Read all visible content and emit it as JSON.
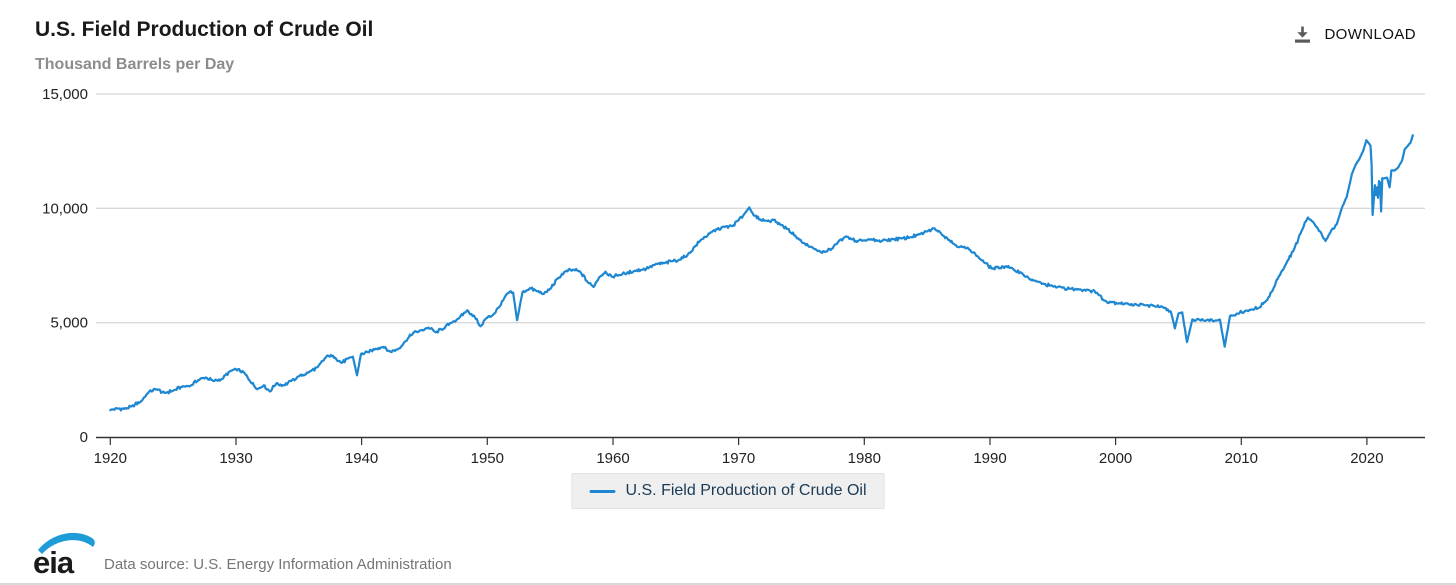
{
  "header": {
    "title": "U.S. Field Production of Crude Oil",
    "subtitle": "Thousand Barrels per Day",
    "download_label": "DOWNLOAD"
  },
  "legend": {
    "label": "U.S. Field Production of Crude Oil"
  },
  "footer": {
    "logo_text": "eia",
    "source": "Data source: U.S. Energy Information Administration"
  },
  "colors": {
    "line": "#1d87d2",
    "grid": "#cccccc",
    "axis": "#333333",
    "tick_text": "#222222",
    "legend_text": "#1a3a54",
    "logo_blue": "#1e9cd7"
  },
  "chart_data": {
    "type": "line",
    "title": "U.S. Field Production of Crude Oil",
    "ylabel": "Thousand Barrels per Day",
    "unit": "thousand barrels per day",
    "grid": "horizontal",
    "legend_position": "bottom-center",
    "xlim": [
      1918.86,
      2024.62
    ],
    "ylim": [
      0,
      15000
    ],
    "x_ticks": [
      1920,
      1930,
      1940,
      1950,
      1960,
      1970,
      1980,
      1990,
      2000,
      2010,
      2020
    ],
    "y_ticks": [
      0,
      5000,
      10000,
      15000
    ],
    "noise_amplitude": 80,
    "series": [
      {
        "name": "U.S. Field Production of Crude Oil",
        "points": [
          [
            1920.0,
            1170
          ],
          [
            1920.5,
            1250
          ],
          [
            1921.1,
            1230
          ],
          [
            1921.7,
            1340
          ],
          [
            1922.4,
            1540
          ],
          [
            1923.1,
            2000
          ],
          [
            1923.7,
            2080
          ],
          [
            1924.3,
            1930
          ],
          [
            1925.0,
            2030
          ],
          [
            1925.7,
            2190
          ],
          [
            1926.4,
            2250
          ],
          [
            1927.0,
            2490
          ],
          [
            1927.6,
            2600
          ],
          [
            1928.2,
            2450
          ],
          [
            1928.9,
            2540
          ],
          [
            1929.5,
            2870
          ],
          [
            1930.0,
            2960
          ],
          [
            1930.6,
            2840
          ],
          [
            1931.1,
            2460
          ],
          [
            1931.7,
            2090
          ],
          [
            1932.2,
            2260
          ],
          [
            1932.7,
            1990
          ],
          [
            1933.2,
            2340
          ],
          [
            1933.8,
            2260
          ],
          [
            1934.4,
            2450
          ],
          [
            1935.0,
            2650
          ],
          [
            1935.8,
            2830
          ],
          [
            1936.5,
            3060
          ],
          [
            1937.3,
            3570
          ],
          [
            1937.9,
            3470
          ],
          [
            1938.4,
            3240
          ],
          [
            1938.9,
            3430
          ],
          [
            1939.3,
            3510
          ],
          [
            1939.63,
            2700
          ],
          [
            1939.95,
            3630
          ],
          [
            1940.5,
            3710
          ],
          [
            1941.1,
            3860
          ],
          [
            1941.7,
            3940
          ],
          [
            1942.3,
            3720
          ],
          [
            1942.9,
            3850
          ],
          [
            1943.5,
            4190
          ],
          [
            1944.1,
            4550
          ],
          [
            1944.7,
            4660
          ],
          [
            1945.3,
            4790
          ],
          [
            1945.9,
            4580
          ],
          [
            1946.5,
            4730
          ],
          [
            1947.1,
            4990
          ],
          [
            1947.8,
            5230
          ],
          [
            1948.4,
            5540
          ],
          [
            1949.0,
            5260
          ],
          [
            1949.45,
            4840
          ],
          [
            1949.9,
            5190
          ],
          [
            1950.4,
            5310
          ],
          [
            1951.0,
            5720
          ],
          [
            1951.6,
            6280
          ],
          [
            1952.05,
            6320
          ],
          [
            1952.37,
            5110
          ],
          [
            1952.8,
            6330
          ],
          [
            1953.4,
            6510
          ],
          [
            1953.9,
            6390
          ],
          [
            1954.5,
            6260
          ],
          [
            1955.0,
            6480
          ],
          [
            1955.6,
            6930
          ],
          [
            1956.2,
            7240
          ],
          [
            1956.9,
            7310
          ],
          [
            1957.4,
            7220
          ],
          [
            1958.0,
            6760
          ],
          [
            1958.45,
            6560
          ],
          [
            1958.9,
            6990
          ],
          [
            1959.4,
            7230
          ],
          [
            1959.9,
            7010
          ],
          [
            1960.5,
            7090
          ],
          [
            1961.1,
            7160
          ],
          [
            1961.7,
            7270
          ],
          [
            1962.3,
            7310
          ],
          [
            1962.9,
            7420
          ],
          [
            1963.5,
            7570
          ],
          [
            1964.1,
            7600
          ],
          [
            1964.7,
            7690
          ],
          [
            1965.3,
            7760
          ],
          [
            1965.9,
            7930
          ],
          [
            1966.5,
            8320
          ],
          [
            1967.1,
            8660
          ],
          [
            1967.7,
            8900
          ],
          [
            1968.3,
            9090
          ],
          [
            1968.9,
            9190
          ],
          [
            1969.5,
            9220
          ],
          [
            1970.0,
            9480
          ],
          [
            1970.45,
            9750
          ],
          [
            1970.85,
            10040
          ],
          [
            1971.2,
            9690
          ],
          [
            1971.7,
            9520
          ],
          [
            1972.2,
            9460
          ],
          [
            1972.8,
            9490
          ],
          [
            1973.3,
            9290
          ],
          [
            1973.9,
            9100
          ],
          [
            1974.5,
            8810
          ],
          [
            1975.1,
            8490
          ],
          [
            1975.7,
            8320
          ],
          [
            1976.3,
            8130
          ],
          [
            1976.9,
            8090
          ],
          [
            1977.4,
            8230
          ],
          [
            1977.9,
            8510
          ],
          [
            1978.4,
            8730
          ],
          [
            1978.9,
            8690
          ],
          [
            1979.4,
            8530
          ],
          [
            1979.9,
            8590
          ],
          [
            1980.5,
            8630
          ],
          [
            1981.1,
            8570
          ],
          [
            1981.7,
            8610
          ],
          [
            1982.3,
            8650
          ],
          [
            1983.0,
            8680
          ],
          [
            1983.7,
            8740
          ],
          [
            1984.4,
            8860
          ],
          [
            1985.0,
            8990
          ],
          [
            1985.6,
            9120
          ],
          [
            1986.1,
            8910
          ],
          [
            1986.6,
            8690
          ],
          [
            1987.2,
            8410
          ],
          [
            1987.8,
            8310
          ],
          [
            1988.4,
            8190
          ],
          [
            1989.0,
            7910
          ],
          [
            1989.6,
            7610
          ],
          [
            1990.2,
            7360
          ],
          [
            1990.8,
            7400
          ],
          [
            1991.3,
            7470
          ],
          [
            1991.9,
            7310
          ],
          [
            1992.5,
            7190
          ],
          [
            1993.1,
            6930
          ],
          [
            1993.7,
            6800
          ],
          [
            1994.3,
            6690
          ],
          [
            1995.0,
            6590
          ],
          [
            1995.7,
            6540
          ],
          [
            1996.4,
            6480
          ],
          [
            1997.1,
            6450
          ],
          [
            1997.8,
            6440
          ],
          [
            1998.5,
            6310
          ],
          [
            1999.1,
            5960
          ],
          [
            1999.7,
            5910
          ],
          [
            2000.3,
            5850
          ],
          [
            2001.0,
            5820
          ],
          [
            2001.7,
            5780
          ],
          [
            2002.4,
            5760
          ],
          [
            2003.1,
            5720
          ],
          [
            2003.8,
            5660
          ],
          [
            2004.4,
            5470
          ],
          [
            2004.72,
            4750
          ],
          [
            2005.0,
            5400
          ],
          [
            2005.3,
            5450
          ],
          [
            2005.68,
            4150
          ],
          [
            2006.1,
            5140
          ],
          [
            2006.7,
            5120
          ],
          [
            2007.3,
            5130
          ],
          [
            2007.9,
            5090
          ],
          [
            2008.3,
            5140
          ],
          [
            2008.68,
            3950
          ],
          [
            2009.1,
            5290
          ],
          [
            2009.7,
            5400
          ],
          [
            2010.3,
            5510
          ],
          [
            2010.9,
            5570
          ],
          [
            2011.4,
            5650
          ],
          [
            2011.9,
            5910
          ],
          [
            2012.5,
            6410
          ],
          [
            2013.0,
            7040
          ],
          [
            2013.6,
            7610
          ],
          [
            2014.2,
            8210
          ],
          [
            2014.8,
            9010
          ],
          [
            2015.3,
            9600
          ],
          [
            2015.7,
            9410
          ],
          [
            2016.1,
            9110
          ],
          [
            2016.7,
            8570
          ],
          [
            2017.1,
            8960
          ],
          [
            2017.6,
            9310
          ],
          [
            2018.0,
            10010
          ],
          [
            2018.4,
            10510
          ],
          [
            2018.8,
            11510
          ],
          [
            2019.1,
            11910
          ],
          [
            2019.4,
            12160
          ],
          [
            2019.7,
            12510
          ],
          [
            2019.95,
            12980
          ],
          [
            2020.15,
            12850
          ],
          [
            2020.28,
            12740
          ],
          [
            2020.37,
            11910
          ],
          [
            2020.45,
            9710
          ],
          [
            2020.55,
            10440
          ],
          [
            2020.63,
            11010
          ],
          [
            2020.72,
            10580
          ],
          [
            2020.8,
            10920
          ],
          [
            2020.88,
            10460
          ],
          [
            2020.96,
            11190
          ],
          [
            2021.04,
            11130
          ],
          [
            2021.13,
            9860
          ],
          [
            2021.22,
            11320
          ],
          [
            2021.4,
            11310
          ],
          [
            2021.6,
            11340
          ],
          [
            2021.8,
            10920
          ],
          [
            2021.95,
            11660
          ],
          [
            2022.2,
            11650
          ],
          [
            2022.5,
            11800
          ],
          [
            2022.8,
            12100
          ],
          [
            2023.0,
            12570
          ],
          [
            2023.2,
            12700
          ],
          [
            2023.45,
            12850
          ],
          [
            2023.65,
            13200
          ]
        ]
      }
    ]
  }
}
